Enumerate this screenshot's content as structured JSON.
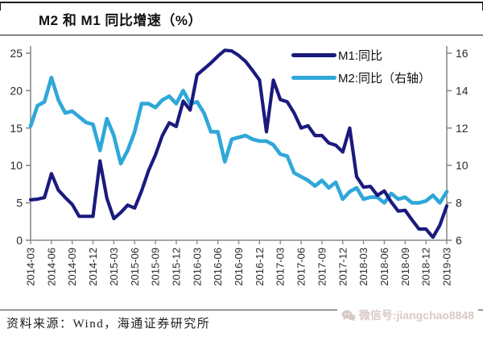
{
  "header": {
    "title": "M2 和 M1 同比增速（%）"
  },
  "legend": {
    "position": "top-right",
    "items": [
      {
        "label": "M1:同比",
        "color": "#1a1a7e"
      },
      {
        "label": "M2:同比（右轴）",
        "color": "#2fa7d9"
      }
    ]
  },
  "chart_data": {
    "type": "line",
    "title": "M2 和 M1 同比增速（%）",
    "grid": false,
    "frequency": "monthly",
    "x_range": [
      "2014-03",
      "2019-03"
    ],
    "x_tick_labels": [
      "2014-03",
      "2014-06",
      "2014-09",
      "2014-12",
      "2015-03",
      "2015-06",
      "2015-09",
      "2015-12",
      "2016-03",
      "2016-06",
      "2016-09",
      "2016-12",
      "2017-03",
      "2017-06",
      "2017-09",
      "2017-12",
      "2018-03",
      "2018-06",
      "2018-09",
      "2018-12",
      "2019-03"
    ],
    "left_axis": {
      "min": 0,
      "max": 25,
      "ticks": [
        0,
        5,
        10,
        15,
        20,
        25
      ]
    },
    "right_axis": {
      "min": 6,
      "max": 16,
      "ticks": [
        6,
        8,
        10,
        12,
        14,
        16
      ]
    },
    "series": [
      {
        "name": "M1:同比",
        "axis": "left",
        "color": "#1a1a7e",
        "values": [
          5.4,
          5.5,
          5.7,
          8.9,
          6.7,
          5.7,
          4.8,
          3.2,
          3.2,
          3.2,
          10.6,
          5.6,
          2.9,
          3.7,
          4.7,
          4.3,
          6.6,
          9.3,
          11.4,
          14.0,
          15.7,
          15.2,
          18.6,
          17.4,
          22.1,
          22.9,
          23.7,
          24.6,
          25.4,
          25.3,
          24.7,
          23.9,
          22.7,
          21.4,
          14.5,
          21.4,
          18.8,
          18.5,
          17.0,
          15.0,
          15.3,
          14.0,
          14.0,
          13.0,
          12.7,
          11.8,
          15.0,
          8.5,
          7.1,
          7.2,
          6.0,
          6.6,
          5.1,
          3.9,
          4.0,
          2.7,
          1.5,
          1.5,
          0.4,
          2.0,
          4.6
        ]
      },
      {
        "name": "M2:同比（右轴）",
        "axis": "right",
        "color": "#2fa7d9",
        "values": [
          12.1,
          13.2,
          13.4,
          14.7,
          13.5,
          12.8,
          12.9,
          12.6,
          12.3,
          12.2,
          10.8,
          12.5,
          11.6,
          10.1,
          10.8,
          11.8,
          13.3,
          13.3,
          13.1,
          13.5,
          13.7,
          13.3,
          14.0,
          13.3,
          13.4,
          12.8,
          11.8,
          11.8,
          10.2,
          11.4,
          11.5,
          11.6,
          11.4,
          11.3,
          11.3,
          11.1,
          10.6,
          10.5,
          9.6,
          9.4,
          9.2,
          8.9,
          9.2,
          8.8,
          9.1,
          8.2,
          8.6,
          8.8,
          8.2,
          8.3,
          8.3,
          8.0,
          8.5,
          8.2,
          8.3,
          8.0,
          8.0,
          8.1,
          8.4,
          8.0,
          8.6
        ]
      }
    ]
  },
  "footer": {
    "source": "资料来源：Wind，海通证券研究所",
    "watermark": "微信号:jiangchao8848"
  },
  "colors": {
    "axis": "#8c8c8c",
    "tick_text": "#2b2b2b",
    "title_border": "#1b1b1b",
    "footer_line": "#3d3d3d",
    "watermark": "#d9cac8"
  }
}
